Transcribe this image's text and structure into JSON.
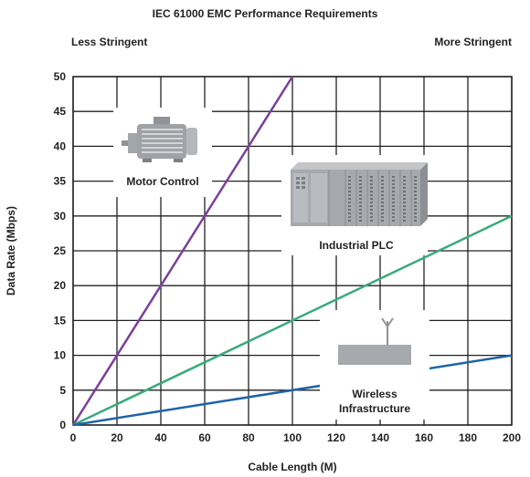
{
  "chart_data": {
    "type": "line",
    "title": "IEC 61000 EMC Performance Requirements",
    "left_note": "Less Stringent",
    "right_note": "More Stringent",
    "xlabel": "Cable Length (M)",
    "ylabel": "Data Rate (Mbps)",
    "xlim": [
      0,
      200
    ],
    "ylim": [
      0,
      50
    ],
    "xticks": [
      0,
      20,
      40,
      60,
      80,
      100,
      120,
      140,
      160,
      180,
      200
    ],
    "yticks": [
      0,
      5,
      10,
      15,
      20,
      25,
      30,
      35,
      40,
      45,
      50
    ],
    "grid": true,
    "series": [
      {
        "color": "#7b3f9c",
        "x": [
          0,
          100
        ],
        "y": [
          0,
          50
        ]
      },
      {
        "color": "#3aaa7b",
        "x": [
          0,
          200
        ],
        "y": [
          0,
          30
        ]
      },
      {
        "color": "#1f62a8",
        "x": [
          0,
          200
        ],
        "y": [
          0,
          10
        ]
      }
    ],
    "annotations": [
      {
        "id": "motor",
        "text": "Motor Control",
        "icon": "motor-icon"
      },
      {
        "id": "plc",
        "text": "Industrial PLC",
        "icon": "plc-icon"
      },
      {
        "id": "wireless",
        "text": [
          "Wireless",
          "Infrastructure"
        ],
        "icon": "antenna-icon"
      }
    ]
  }
}
